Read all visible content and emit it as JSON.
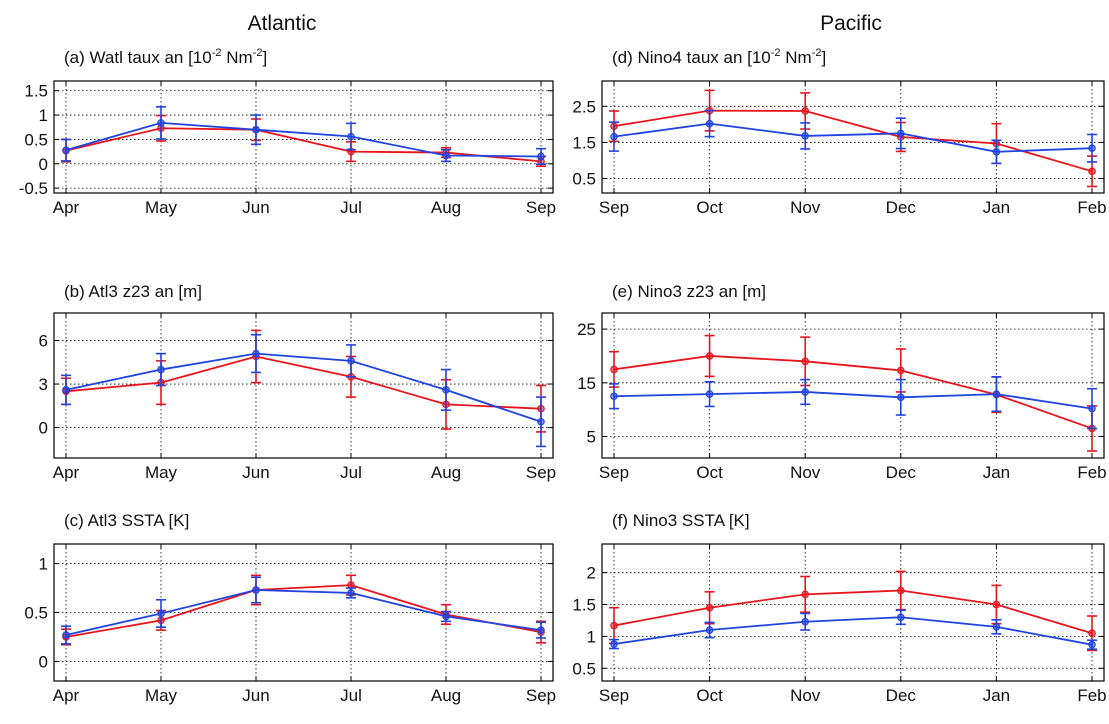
{
  "columns": [
    "Atlantic",
    "Pacific"
  ],
  "colors": {
    "series_a": "#e8141c",
    "series_b": "#1f44e0",
    "axis": "#000000",
    "grid": "#000000"
  },
  "chart_data": [
    {
      "type": "line",
      "title": "(a) Watl taux an [10",
      "title_sup1": "-2",
      "title_mid": " Nm",
      "title_sup2": "-2",
      "title_end": "]",
      "categories": [
        "Apr",
        "May",
        "Jun",
        "Jul",
        "Aug",
        "Sep"
      ],
      "yticks": [
        "-0.5",
        "0",
        "0.5",
        "1",
        "1.5"
      ],
      "ylim": [
        -0.6,
        1.7
      ],
      "grid": true,
      "series": [
        {
          "color": "#e8141c",
          "values": [
            0.27,
            0.73,
            0.7,
            0.25,
            0.23,
            0.05
          ],
          "err": [
            0.23,
            0.26,
            0.22,
            0.2,
            0.1,
            0.1
          ]
        },
        {
          "color": "#1f44e0",
          "values": [
            0.28,
            0.84,
            0.7,
            0.56,
            0.17,
            0.15
          ],
          "err": [
            0.22,
            0.33,
            0.3,
            0.27,
            0.12,
            0.16
          ]
        }
      ]
    },
    {
      "type": "line",
      "title": "(b) Atl3 z23 an [m]",
      "categories": [
        "Apr",
        "May",
        "Jun",
        "Jul",
        "Aug",
        "Sep"
      ],
      "yticks": [
        "0",
        "3",
        "6"
      ],
      "ylim": [
        -2.1,
        7.9
      ],
      "grid": true,
      "series": [
        {
          "color": "#e8141c",
          "values": [
            2.5,
            3.1,
            4.9,
            3.5,
            1.6,
            1.3
          ],
          "err": [
            0.9,
            1.5,
            1.8,
            1.4,
            1.7,
            1.6
          ]
        },
        {
          "color": "#1f44e0",
          "values": [
            2.6,
            4.0,
            5.1,
            4.6,
            2.6,
            0.4
          ],
          "err": [
            1.0,
            1.1,
            1.3,
            1.1,
            1.4,
            1.7
          ]
        }
      ]
    },
    {
      "type": "line",
      "title": "(c) Atl3 SSTA [K]",
      "categories": [
        "Apr",
        "May",
        "Jun",
        "Jul",
        "Aug",
        "Sep"
      ],
      "yticks": [
        "0",
        "0.5",
        "1"
      ],
      "ylim": [
        -0.2,
        1.2
      ],
      "grid": true,
      "series": [
        {
          "color": "#e8141c",
          "values": [
            0.25,
            0.42,
            0.73,
            0.78,
            0.48,
            0.3
          ],
          "err": [
            0.08,
            0.1,
            0.15,
            0.1,
            0.1,
            0.11
          ]
        },
        {
          "color": "#1f44e0",
          "values": [
            0.27,
            0.49,
            0.73,
            0.7,
            0.46,
            0.32
          ],
          "err": [
            0.09,
            0.14,
            0.13,
            0.05,
            0.05,
            0.08
          ]
        }
      ]
    },
    {
      "type": "line",
      "title": "(d) Nino4 taux an [10",
      "title_sup1": "-2",
      "title_mid": " Nm",
      "title_sup2": "-2",
      "title_end": "]",
      "categories": [
        "Sep",
        "Oct",
        "Nov",
        "Dec",
        "Jan",
        "Feb"
      ],
      "yticks": [
        "0.5",
        "1.5",
        "2.5"
      ],
      "ylim": [
        0.1,
        3.2
      ],
      "grid": true,
      "series": [
        {
          "color": "#e8141c",
          "values": [
            1.95,
            2.38,
            2.37,
            1.65,
            1.47,
            0.7
          ],
          "err": [
            0.42,
            0.56,
            0.5,
            0.4,
            0.55,
            0.42
          ]
        },
        {
          "color": "#1f44e0",
          "values": [
            1.66,
            2.02,
            1.68,
            1.75,
            1.24,
            1.34
          ],
          "err": [
            0.4,
            0.36,
            0.36,
            0.42,
            0.32,
            0.38
          ]
        }
      ]
    },
    {
      "type": "line",
      "title": "(e) Nino3 z23 an [m]",
      "categories": [
        "Sep",
        "Oct",
        "Nov",
        "Dec",
        "Jan",
        "Feb"
      ],
      "yticks": [
        "5",
        "15",
        "25"
      ],
      "ylim": [
        1,
        28
      ],
      "grid": true,
      "series": [
        {
          "color": "#e8141c",
          "values": [
            17.5,
            20.0,
            19.0,
            17.3,
            12.8,
            6.5
          ],
          "err": [
            3.3,
            3.8,
            4.5,
            4.0,
            3.3,
            4.2
          ]
        },
        {
          "color": "#1f44e0",
          "values": [
            12.5,
            12.9,
            13.3,
            12.3,
            12.9,
            10.2
          ],
          "err": [
            2.3,
            2.3,
            2.3,
            3.3,
            3.2,
            3.7
          ]
        }
      ]
    },
    {
      "type": "line",
      "title": "(f) Nino3 SSTA [K]",
      "categories": [
        "Sep",
        "Oct",
        "Nov",
        "Dec",
        "Jan",
        "Feb"
      ],
      "yticks": [
        "0.5",
        "1",
        "1.5",
        "2"
      ],
      "ylim": [
        0.3,
        2.45
      ],
      "grid": true,
      "series": [
        {
          "color": "#e8141c",
          "values": [
            1.17,
            1.45,
            1.66,
            1.72,
            1.5,
            1.05
          ],
          "err": [
            0.28,
            0.25,
            0.28,
            0.3,
            0.3,
            0.27
          ]
        },
        {
          "color": "#1f44e0",
          "values": [
            0.88,
            1.1,
            1.23,
            1.3,
            1.15,
            0.87
          ],
          "err": [
            0.07,
            0.12,
            0.13,
            0.11,
            0.11,
            0.07
          ]
        }
      ]
    }
  ]
}
